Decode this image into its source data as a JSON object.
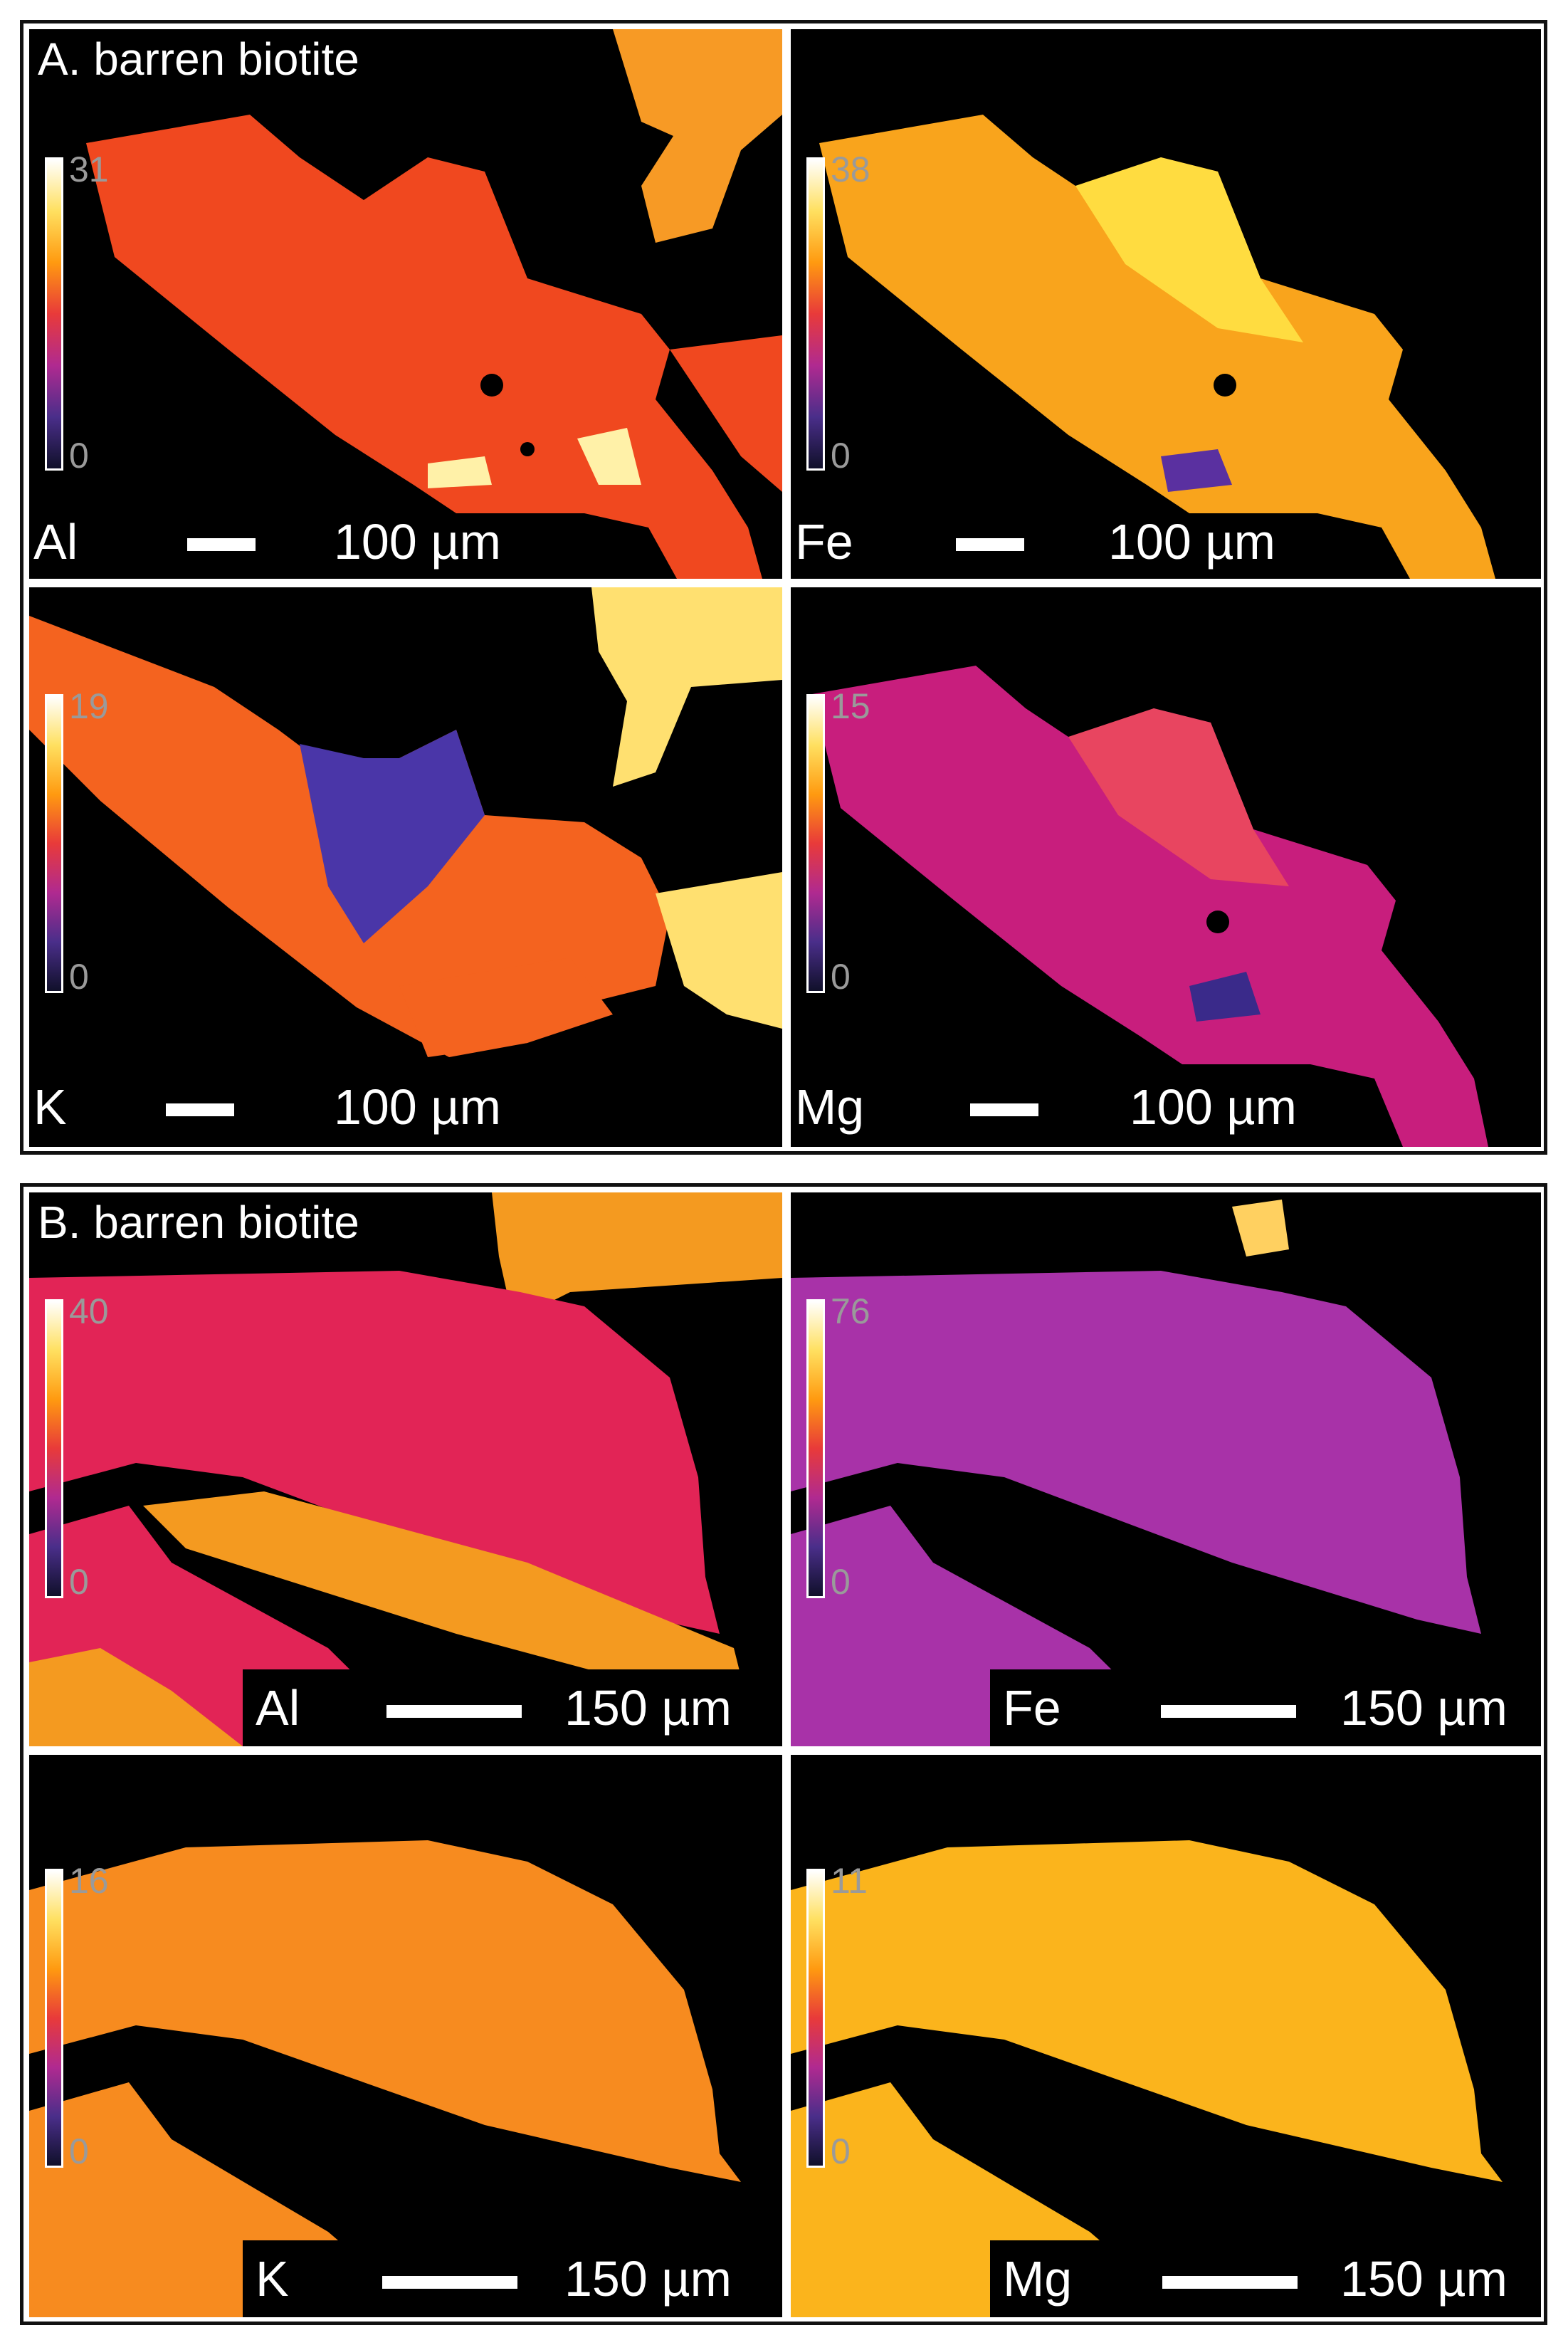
{
  "panelA": {
    "title": "A. barren biotite",
    "maps": [
      {
        "element": "Al",
        "scale_max": "31",
        "scale_min": "0",
        "scale_label": "100 µm"
      },
      {
        "element": "Fe",
        "scale_max": "38",
        "scale_min": "0",
        "scale_label": "100 µm"
      },
      {
        "element": "K",
        "scale_max": "19",
        "scale_min": "0",
        "scale_label": "100 µm"
      },
      {
        "element": "Mg",
        "scale_max": "15",
        "scale_min": "0",
        "scale_label": "100 µm"
      }
    ]
  },
  "panelB": {
    "title": "B. barren biotite",
    "maps": [
      {
        "element": "Al",
        "scale_max": "40",
        "scale_min": "0",
        "scale_label": "150 µm"
      },
      {
        "element": "Fe",
        "scale_max": "76",
        "scale_min": "0",
        "scale_label": "150 µm"
      },
      {
        "element": "K",
        "scale_max": "16",
        "scale_min": "0",
        "scale_label": "150 µm"
      },
      {
        "element": "Mg",
        "scale_max": "11",
        "scale_min": "0",
        "scale_label": "150 µm"
      }
    ]
  },
  "colors": {
    "colormap": [
      "#ffffff",
      "#ffe060",
      "#ff9a10",
      "#e83a3a",
      "#b02a90",
      "#4a2e8a",
      "#10102a"
    ],
    "A_Al_grain": "#f0481f",
    "A_Al_bright": "#fff1a8",
    "A_Al_light": "#f79a25",
    "A_Fe_grain": "#f9a41c",
    "A_Fe_bright": "#ffdc40",
    "A_Fe_dark": "#5a30a0",
    "A_K_grain": "#f4631f",
    "A_K_bright": "#ffe070",
    "A_K_dark": "#4a36a8",
    "A_Mg_grain": "#c81e7d",
    "A_Mg_light": "#e84560",
    "A_Mg_dark": "#3a2a8a",
    "B_Al_grain": "#e22456",
    "B_Al_other": "#f49a20",
    "B_Fe_grain": "#a832a8",
    "B_Fe_spot": "#ffd060",
    "B_K_grain": "#f78b1f",
    "B_Mg_grain": "#fbb41c"
  }
}
